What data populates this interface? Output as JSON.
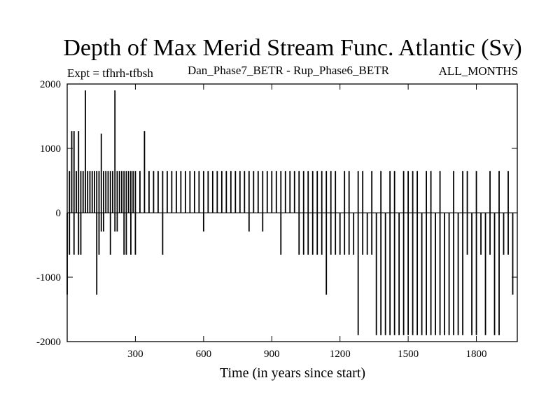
{
  "chart_data": {
    "type": "line",
    "title": "Depth of Max Merid Stream Func. Atlantic (Sv)",
    "subtitle_left": "Expt = tfhrh-tfbsh",
    "subtitle_center": "Dan_Phase7_BETR - Rup_Phase6_BETR",
    "subtitle_right": "ALL_MONTHS",
    "xlabel": "Time (in years since start)",
    "ylabel": "",
    "xlim": [
      0,
      1980
    ],
    "ylim": [
      -2000,
      2000
    ],
    "x_ticks": [
      300,
      600,
      900,
      1200,
      1500,
      1800
    ],
    "y_ticks": [
      2000,
      1000,
      0,
      -1000,
      -2000
    ],
    "grid": false,
    "series": [
      {
        "x": [
          0,
          10,
          20,
          30,
          40,
          50,
          60,
          70,
          80,
          90,
          100,
          110,
          120,
          130,
          140,
          150,
          160,
          170,
          180,
          190,
          200,
          210,
          220,
          230,
          240,
          250,
          260,
          270,
          280,
          290,
          300,
          320,
          340,
          360,
          380,
          400,
          420,
          440,
          460,
          480,
          500,
          520,
          540,
          560,
          580,
          600,
          620,
          640,
          660,
          680,
          700,
          720,
          740,
          760,
          780,
          800,
          820,
          840,
          860,
          880,
          900,
          920,
          940,
          960,
          980,
          1000,
          1020,
          1040,
          1060,
          1080,
          1100,
          1120,
          1140,
          1160,
          1180,
          1200,
          1220,
          1240,
          1260,
          1280,
          1300,
          1320,
          1340,
          1360,
          1380,
          1400,
          1420,
          1440,
          1460,
          1480,
          1500,
          1520,
          1540,
          1560,
          1580,
          1600,
          1620,
          1640,
          1660,
          1680,
          1700,
          1720,
          1740,
          1760,
          1780,
          1800,
          1820,
          1840,
          1860,
          1880,
          1900,
          1920,
          1940,
          1960,
          1980
        ],
        "y_max": [
          0,
          650,
          1270,
          1270,
          650,
          1270,
          650,
          650,
          1900,
          650,
          650,
          650,
          650,
          650,
          650,
          1230,
          650,
          650,
          650,
          650,
          650,
          1900,
          650,
          650,
          650,
          650,
          650,
          650,
          650,
          650,
          650,
          650,
          1270,
          650,
          650,
          650,
          650,
          650,
          650,
          650,
          650,
          650,
          650,
          650,
          650,
          650,
          650,
          650,
          650,
          650,
          650,
          650,
          650,
          650,
          650,
          650,
          650,
          650,
          650,
          650,
          650,
          650,
          650,
          650,
          650,
          650,
          650,
          650,
          650,
          650,
          650,
          650,
          650,
          650,
          650,
          0,
          650,
          650,
          0,
          650,
          650,
          0,
          650,
          0,
          650,
          0,
          650,
          650,
          0,
          650,
          650,
          650,
          650,
          0,
          650,
          650,
          0,
          650,
          0,
          0,
          650,
          0,
          650,
          650,
          0,
          650,
          0,
          0,
          650,
          0,
          650,
          0,
          650,
          0
        ],
        "y_min": [
          -1270,
          -650,
          0,
          -650,
          0,
          -650,
          -650,
          0,
          0,
          0,
          0,
          0,
          0,
          -1270,
          -650,
          -290,
          -290,
          0,
          0,
          -650,
          0,
          -290,
          -290,
          0,
          0,
          -650,
          -650,
          0,
          -650,
          0,
          -650,
          0,
          0,
          0,
          0,
          0,
          -650,
          0,
          0,
          0,
          0,
          0,
          0,
          0,
          0,
          -290,
          0,
          0,
          0,
          0,
          0,
          0,
          0,
          0,
          0,
          -290,
          0,
          0,
          -290,
          0,
          0,
          0,
          -650,
          0,
          0,
          0,
          -650,
          -650,
          -650,
          -650,
          -650,
          -650,
          -1270,
          -650,
          -650,
          -650,
          -650,
          -650,
          -650,
          -1900,
          -650,
          -650,
          -650,
          -1900,
          -1900,
          -1900,
          -1900,
          -1900,
          -1900,
          -1900,
          -1900,
          -1900,
          -1900,
          -1900,
          -1900,
          -1900,
          -1900,
          -1900,
          -1900,
          -1900,
          -1900,
          -1900,
          -1900,
          -650,
          -1900,
          -1900,
          -650,
          -1900,
          -650,
          -1900,
          -1900,
          -650,
          -650,
          -1270
        ]
      }
    ]
  },
  "colors": {
    "line": "#000000",
    "frame": "#000000",
    "background": "#ffffff"
  }
}
